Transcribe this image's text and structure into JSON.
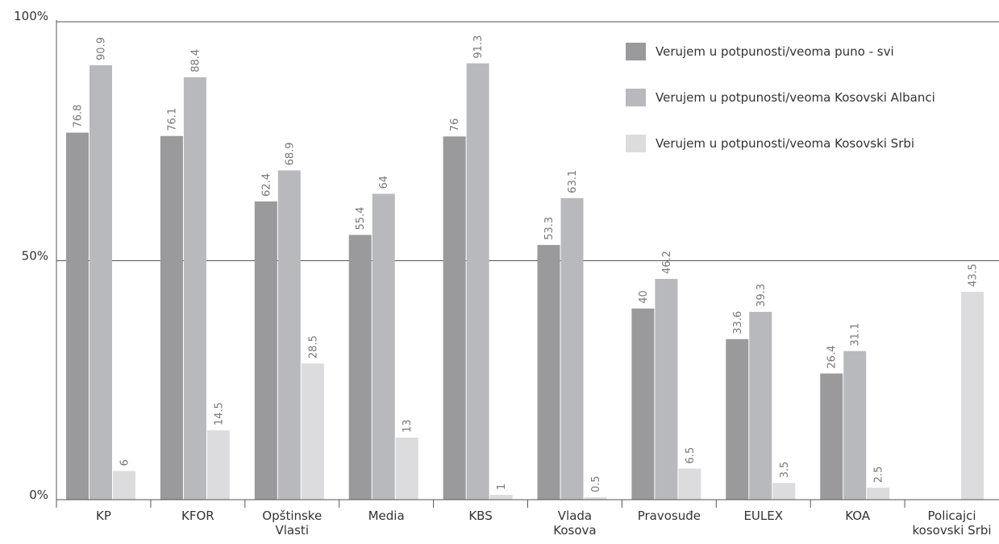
{
  "chart_data": {
    "type": "bar",
    "categories": [
      [
        "KP"
      ],
      [
        "KFOR"
      ],
      [
        "Opštinske",
        "Vlasti"
      ],
      [
        "Media"
      ],
      [
        "KBS"
      ],
      [
        "Vlada",
        "Kosova"
      ],
      [
        "Pravosuđe"
      ],
      [
        "EULEX"
      ],
      [
        "KOA"
      ],
      [
        "Policajci",
        "kosovski Srbi"
      ]
    ],
    "series": [
      {
        "name": "Verujem u potpunosti/veoma puno - svi",
        "color": "#9a9a9c",
        "values": [
          76.8,
          76.1,
          62.4,
          55.4,
          76,
          53.3,
          40,
          33.6,
          26.4,
          null
        ],
        "labels": [
          "76.8",
          "76.1",
          "62.4",
          "55.4",
          "76",
          "53.3",
          "40",
          "33.6",
          "26.4",
          ""
        ]
      },
      {
        "name": "Verujem u potpunosti/veoma Kosovski Albanci",
        "color": "#b8b9bc",
        "values": [
          90.9,
          88.4,
          68.9,
          64,
          91.3,
          63.1,
          46.2,
          39.3,
          31.1,
          null
        ],
        "labels": [
          "90.9",
          "88.4",
          "68.9",
          "64",
          "91.3",
          "63.1",
          "46.2",
          "39.3",
          "31.1",
          ""
        ]
      },
      {
        "name": "Verujem u potpunosti/veoma Kosovski Srbi",
        "color": "#dcdcde",
        "values": [
          6,
          14.5,
          28.5,
          13,
          1,
          0.5,
          6.5,
          3.5,
          2.5,
          43.5
        ],
        "labels": [
          "6",
          "14.5",
          "28.5",
          "13",
          "1",
          "0.5",
          "6.5",
          "3.5",
          "2.5",
          "43.5"
        ]
      }
    ],
    "yticks": [
      {
        "value": 0,
        "label": "0%"
      },
      {
        "value": 50,
        "label": "50%"
      },
      {
        "value": 100,
        "label": "100%"
      }
    ],
    "ylim": [
      0,
      100
    ],
    "grid": true,
    "legend": "top-right"
  }
}
